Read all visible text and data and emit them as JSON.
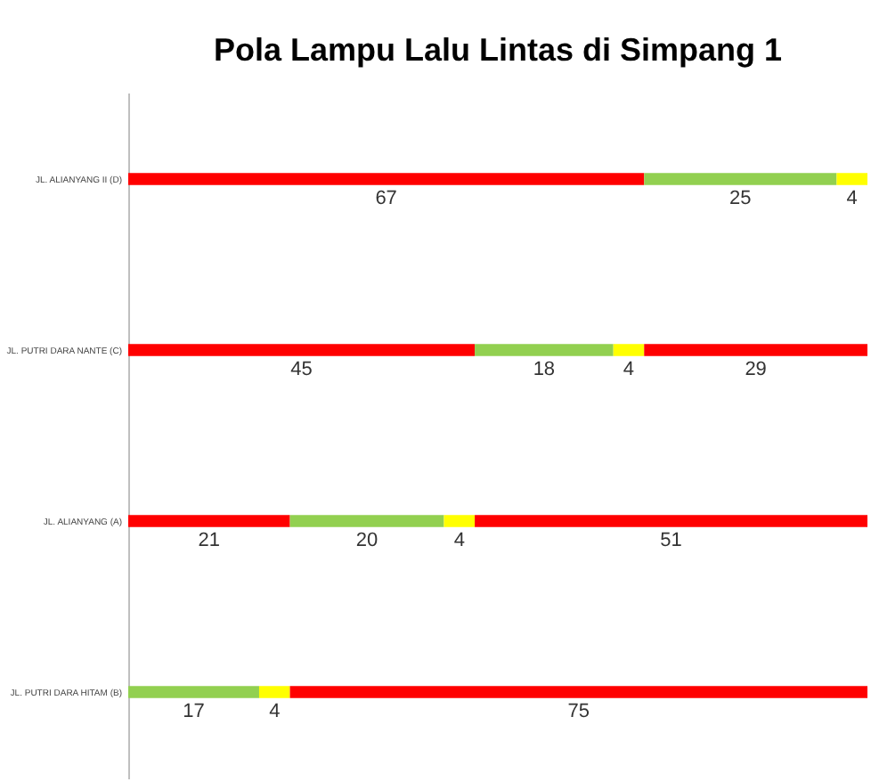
{
  "chart_data": {
    "type": "bar",
    "orientation": "horizontal",
    "stacked": true,
    "title": "Pola Lampu Lalu Lintas di Simpang 1",
    "categories": [
      "JL. ALIANYANG II (D)",
      "JL. PUTRI DARA NANTE (C)",
      "JL. ALIANYANG (A)",
      "JL. PUTRI DARA HITAM (B)"
    ],
    "series": [
      {
        "colors": [
          "#ff0000",
          "#ff0000",
          "#ff0000",
          "#92d050"
        ],
        "values": [
          67,
          45,
          21,
          17
        ]
      },
      {
        "colors": [
          "#92d050",
          "#92d050",
          "#92d050",
          "#ffff00"
        ],
        "values": [
          25,
          18,
          20,
          4
        ]
      },
      {
        "colors": [
          "#ffff00",
          "#ffff00",
          "#ffff00",
          "#ff0000"
        ],
        "values": [
          4,
          4,
          4,
          75
        ]
      },
      {
        "color": "#ff0000",
        "values": [
          null,
          29,
          51,
          null
        ]
      }
    ],
    "xlim": [
      0,
      96
    ],
    "data_labels": true
  }
}
